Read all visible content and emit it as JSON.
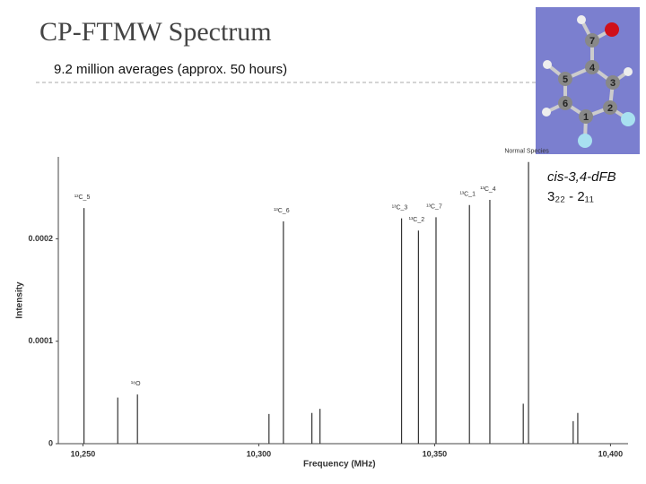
{
  "title": "CP-FTMW Spectrum",
  "subtitle": "9.2 million averages (approx. 50 hours)",
  "species": "cis-3,4-dFB",
  "transition": "3₂₂ - 2₁₁",
  "molecule": {
    "atom_labels": [
      "1",
      "2",
      "3",
      "4",
      "5",
      "6",
      "7"
    ]
  },
  "chart_data": {
    "type": "stick",
    "x_label": "Frequency (MHz)",
    "y_label": "Intensity",
    "x": [
      10250.3,
      10259.9,
      10265.5,
      10302.9,
      10307.0,
      10315.1,
      10317.4,
      10340.6,
      10345.4,
      10350.4,
      10359.9,
      10365.7,
      10375.2,
      10376.7,
      10389.4,
      10390.7
    ],
    "values": [
      0.00023,
      4.5e-05,
      4.8e-05,
      2.9e-05,
      0.000217,
      3e-05,
      3.4e-05,
      0.00022,
      0.000208,
      0.000221,
      0.000233,
      0.000238,
      3.9e-05,
      0.000275,
      2.2e-05,
      3e-05
    ],
    "peak_labels": [
      "¹³C_5",
      null,
      "¹⁸O",
      null,
      "¹³C_6",
      null,
      null,
      "¹³C_3",
      "¹³C_2",
      "¹³C_7",
      "¹³C_1",
      "¹³C_4",
      null,
      "Normal Species",
      null,
      null
    ],
    "color": "#333333",
    "xlim": [
      10243,
      10405
    ],
    "xticks": [
      {
        "value": 10250,
        "label": "10,250"
      },
      {
        "value": 10300,
        "label": "10,300"
      },
      {
        "value": 10350,
        "label": "10,350"
      },
      {
        "value": 10400,
        "label": "10,400"
      }
    ],
    "ylim": [
      0,
      0.00028
    ],
    "yticks": [
      0,
      0.0001,
      0.0002
    ],
    "grid": false
  }
}
